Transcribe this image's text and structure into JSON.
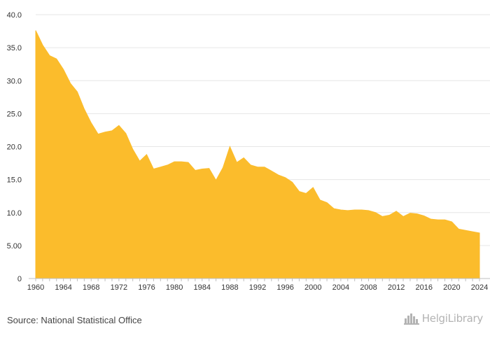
{
  "chart_data": {
    "type": "area",
    "title": "",
    "xlabel": "",
    "ylabel": "",
    "color": "#fbbc2c",
    "grid": true,
    "xlim": [
      1960,
      2024
    ],
    "ylim": [
      0,
      40
    ],
    "y_ticks": [
      "0",
      "5.00",
      "10.0",
      "15.0",
      "20.0",
      "25.0",
      "30.0",
      "35.0",
      "40.0"
    ],
    "x_ticks": [
      "1960",
      "1964",
      "1968",
      "1972",
      "1976",
      "1980",
      "1984",
      "1988",
      "1992",
      "1996",
      "2000",
      "2004",
      "2008",
      "2012",
      "2016",
      "2020",
      "2024"
    ],
    "x": [
      1960,
      1961,
      1962,
      1963,
      1964,
      1965,
      1966,
      1967,
      1968,
      1969,
      1970,
      1971,
      1972,
      1973,
      1974,
      1975,
      1976,
      1977,
      1978,
      1979,
      1980,
      1981,
      1982,
      1983,
      1984,
      1985,
      1986,
      1987,
      1988,
      1989,
      1990,
      1991,
      1992,
      1993,
      1994,
      1995,
      1996,
      1997,
      1998,
      1999,
      2000,
      2001,
      2002,
      2003,
      2004,
      2005,
      2006,
      2007,
      2008,
      2009,
      2010,
      2011,
      2012,
      2013,
      2014,
      2015,
      2016,
      2017,
      2018,
      2019,
      2020,
      2021,
      2022,
      2023,
      2024
    ],
    "values": [
      37.6,
      35.4,
      33.8,
      33.3,
      31.7,
      29.6,
      28.3,
      25.7,
      23.6,
      21.9,
      22.2,
      22.4,
      23.2,
      22.0,
      19.6,
      17.8,
      18.8,
      16.6,
      16.9,
      17.2,
      17.7,
      17.7,
      17.6,
      16.4,
      16.6,
      16.7,
      14.9,
      16.8,
      20.0,
      17.6,
      18.3,
      17.2,
      16.9,
      16.9,
      16.3,
      15.7,
      15.3,
      14.6,
      13.2,
      12.9,
      13.8,
      11.9,
      11.5,
      10.6,
      10.4,
      10.3,
      10.4,
      10.4,
      10.3,
      10.0,
      9.4,
      9.6,
      10.2,
      9.4,
      9.9,
      9.8,
      9.5,
      9.0,
      8.9,
      8.9,
      8.6,
      7.5,
      7.3,
      7.1,
      6.9
    ]
  },
  "footer": {
    "source": "Source: National Statistical Office",
    "brand": "HelgiLibrary"
  },
  "icons": {
    "brand_logo": "city-skyline-icon"
  }
}
